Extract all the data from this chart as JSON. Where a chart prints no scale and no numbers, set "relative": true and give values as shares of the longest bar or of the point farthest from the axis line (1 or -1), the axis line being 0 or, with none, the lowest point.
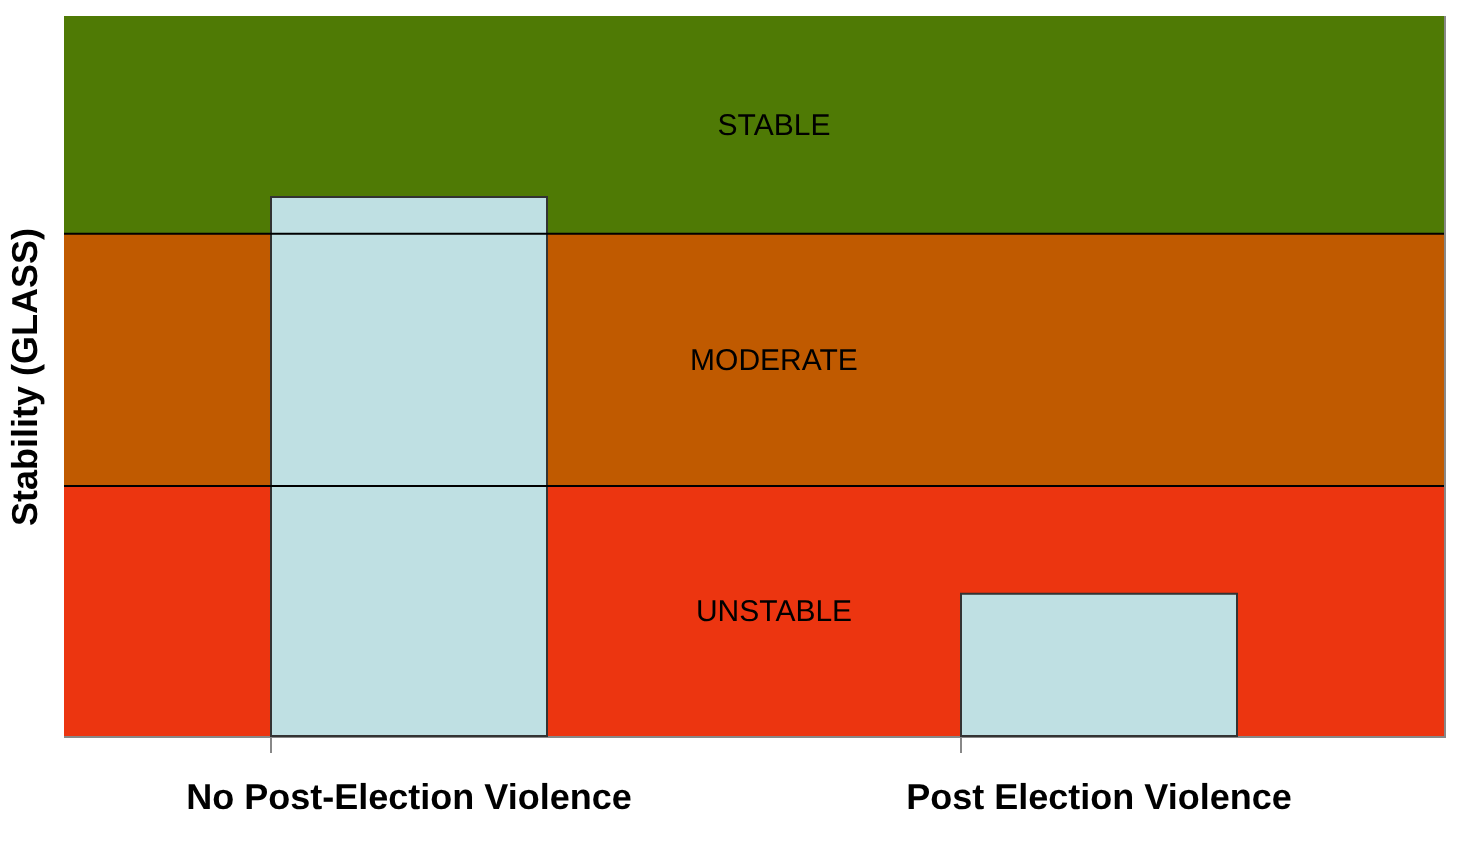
{
  "chart_data": {
    "type": "bar",
    "relative": true,
    "ylabel": "Stability (GLASS)",
    "categories": [
      "No Post-Election Violence",
      "Post Election Violence"
    ],
    "values": [
      1.0,
      0.264
    ],
    "color": "#bfe0e3",
    "bands": [
      {
        "axis": "y",
        "from": 0,
        "to": 0.464,
        "label": "UNSTABLE",
        "color": "#ec3510"
      },
      {
        "axis": "y",
        "from": 0.464,
        "to": 0.932,
        "label": "MODERATE",
        "color": "#c05a00"
      },
      {
        "axis": "y",
        "from": 0.932,
        "to": 1.336,
        "label": "STABLE",
        "color": "#4f7a05"
      }
    ],
    "ref_lines": [
      {
        "axis": "y",
        "value": 0.464,
        "label": null
      },
      {
        "axis": "y",
        "value": 0.932,
        "label": null
      }
    ],
    "grid": false
  }
}
